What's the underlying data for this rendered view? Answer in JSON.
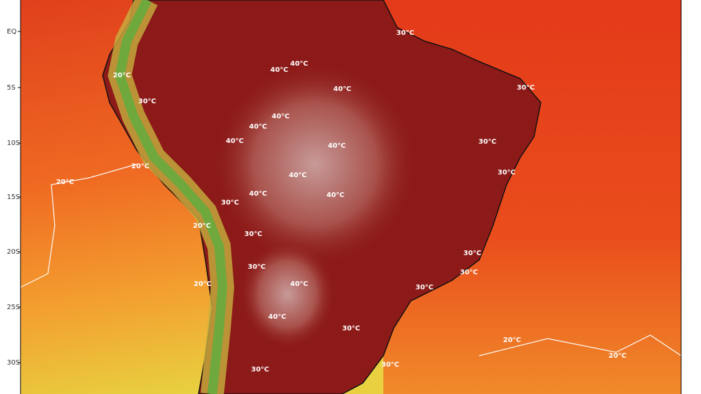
{
  "map": {
    "lat_labels": [
      "EQ",
      "5S",
      "10S",
      "15S",
      "20S",
      "25S",
      "30S"
    ],
    "contour_labels": [
      "30°C",
      "40°C",
      "40°C",
      "20°C",
      "30°C",
      "30°C",
      "40°C",
      "40°C",
      "40°C",
      "40°C",
      "40°C",
      "30°C",
      "20°C",
      "30°C",
      "20°C",
      "40°C",
      "40°C",
      "40°C",
      "30°C",
      "20°C",
      "30°C",
      "30°C",
      "30°C",
      "30°C",
      "40°C",
      "20°C",
      "30°C",
      "40°C",
      "30°C",
      "20°C",
      "20°C",
      "30°C",
      "30°C"
    ]
  }
}
